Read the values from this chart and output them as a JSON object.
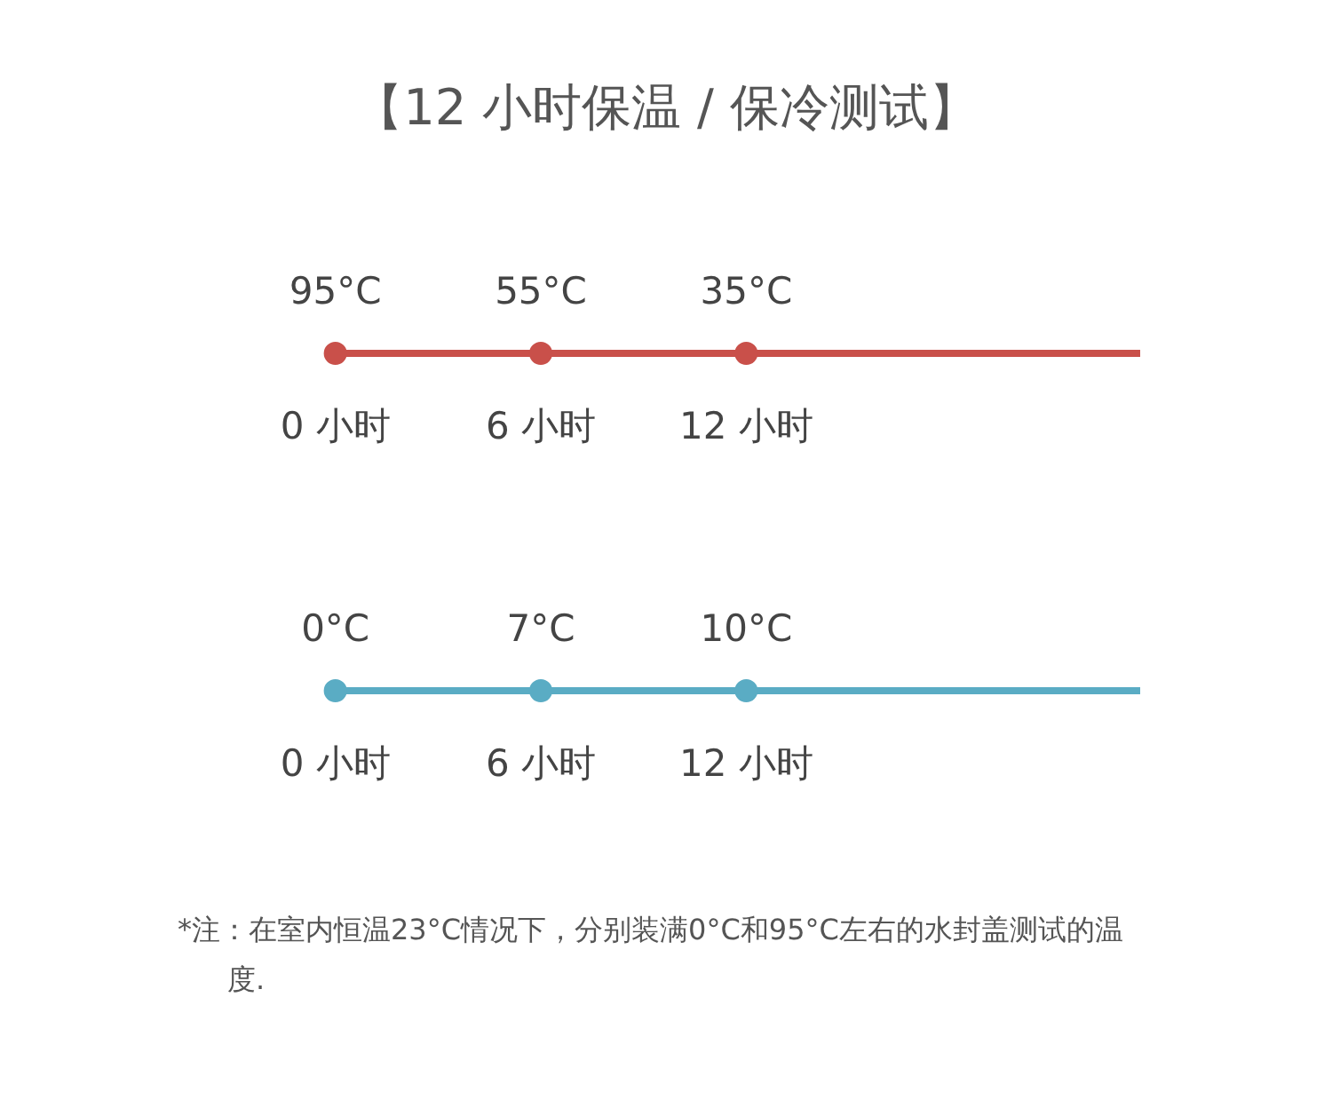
{
  "chart_data": [
    {
      "type": "other",
      "title": "【12 小时保温 / 保冷测试】",
      "categories": [
        "0 小时",
        "6 小时",
        "12 小时"
      ],
      "values": [
        95,
        55,
        35
      ],
      "value_labels": [
        "95°C",
        "55°C",
        "35°C"
      ],
      "color": "#c9504a"
    },
    {
      "type": "other",
      "categories": [
        "0 小时",
        "6 小时",
        "12 小时"
      ],
      "values": [
        0,
        7,
        10
      ],
      "value_labels": [
        "0°C",
        "7°C",
        "10°C"
      ],
      "color": "#5aacc4",
      "annotations": [
        "*注：在室内恒温23°C情况下，分别装满0°C和95°C左右的水封盖测试的温度."
      ]
    }
  ]
}
